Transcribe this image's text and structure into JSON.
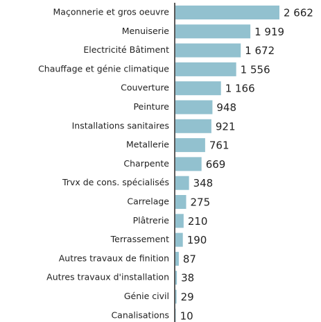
{
  "chart_data": {
    "type": "bar",
    "orientation": "horizontal",
    "color": "#92c1cf",
    "categories": [
      "Maçonnerie et gros oeuvre",
      "Menuiserie",
      "Electricité Bâtiment",
      "Chauffage et génie climatique",
      "Couverture",
      "Peinture",
      "Installations sanitaires",
      "Metallerie",
      "Charpente",
      "Trvx de cons. spécialisés",
      "Carrelage",
      "Plâtrerie",
      "Terrassement",
      "Autres travaux de finition",
      "Autres travaux d'installation",
      "Génie civil",
      "Canalisations"
    ],
    "values": [
      2662,
      1919,
      1672,
      1556,
      1166,
      948,
      921,
      761,
      669,
      348,
      275,
      210,
      190,
      87,
      38,
      29,
      10
    ],
    "value_labels": [
      "2 662",
      "1 919",
      "1 672",
      "1 556",
      "1 166",
      "948",
      "921",
      "761",
      "669",
      "348",
      "275",
      "210",
      "190",
      "87",
      "38",
      "29",
      "10"
    ]
  }
}
